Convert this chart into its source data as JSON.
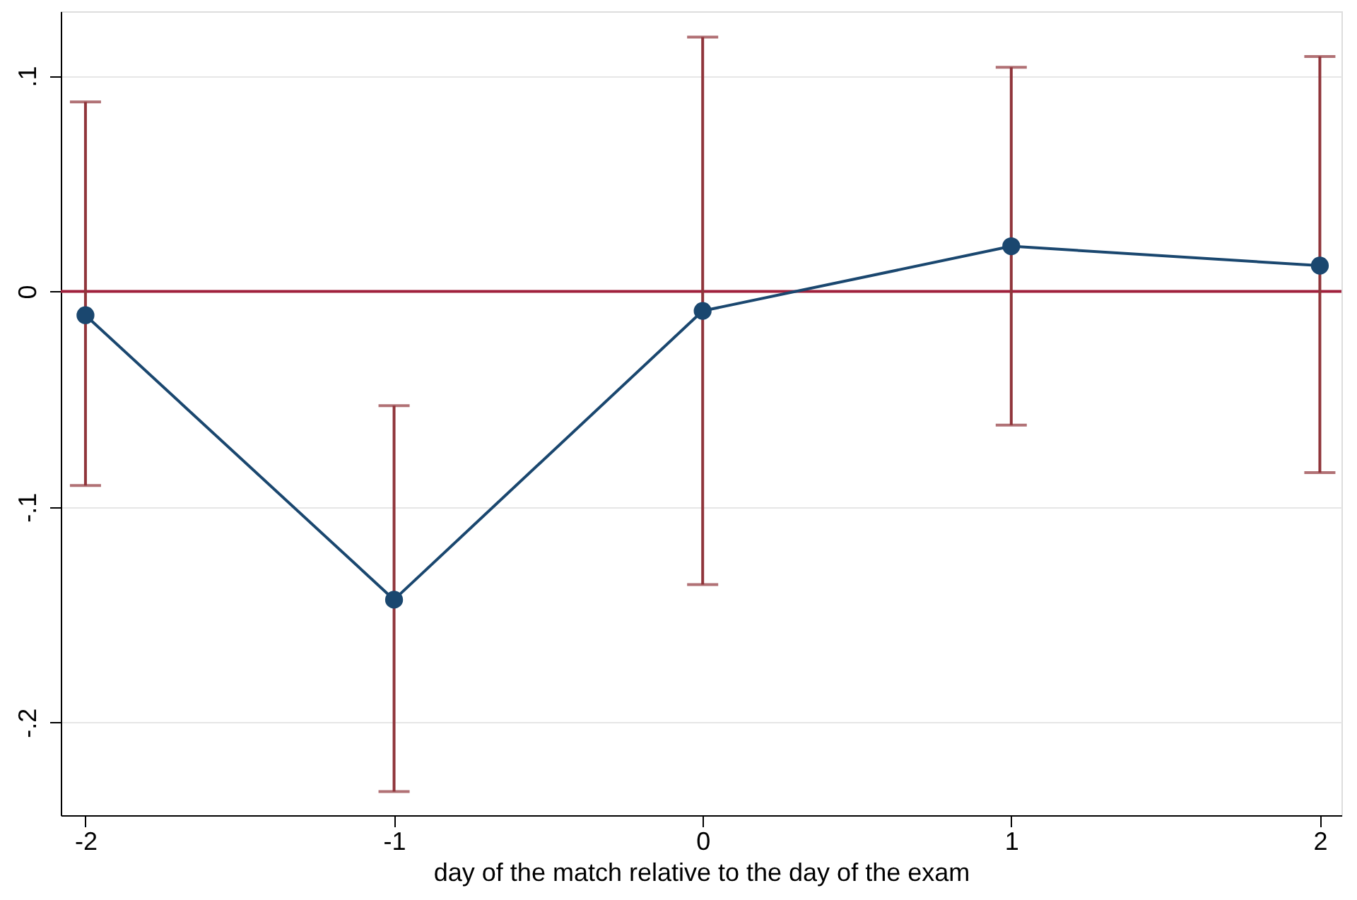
{
  "chart_data": {
    "type": "line",
    "xlabel": "day of the match relative to the day of the exam",
    "x": [
      -2,
      -1,
      0,
      1,
      2
    ],
    "series": [
      {
        "color": "#1a476f",
        "values": [
          -0.011,
          -0.143,
          -0.009,
          0.021,
          0.012
        ],
        "errors": [
          [
            -0.09,
            0.088
          ],
          [
            -0.232,
            -0.053
          ],
          [
            -0.136,
            0.118
          ],
          [
            -0.062,
            0.104
          ],
          [
            -0.084,
            0.109
          ]
        ]
      }
    ],
    "xlim": [
      -2.08,
      2.07
    ],
    "xticks": [
      -2,
      -1,
      0,
      1,
      2
    ],
    "ylim": [
      -0.243,
      0.13
    ],
    "yticks": [
      {
        "value": -0.2,
        "label": "-.2"
      },
      {
        "value": -0.1,
        "label": "-.1"
      },
      {
        "value": 0,
        "label": "0"
      },
      {
        "value": 0.1,
        "label": ".1"
      }
    ],
    "ref_lines": [
      {
        "axis": "y",
        "value": 0,
        "color": "#a0203c"
      }
    ],
    "grid": "y",
    "marker": "circle",
    "line_style": "solid"
  }
}
